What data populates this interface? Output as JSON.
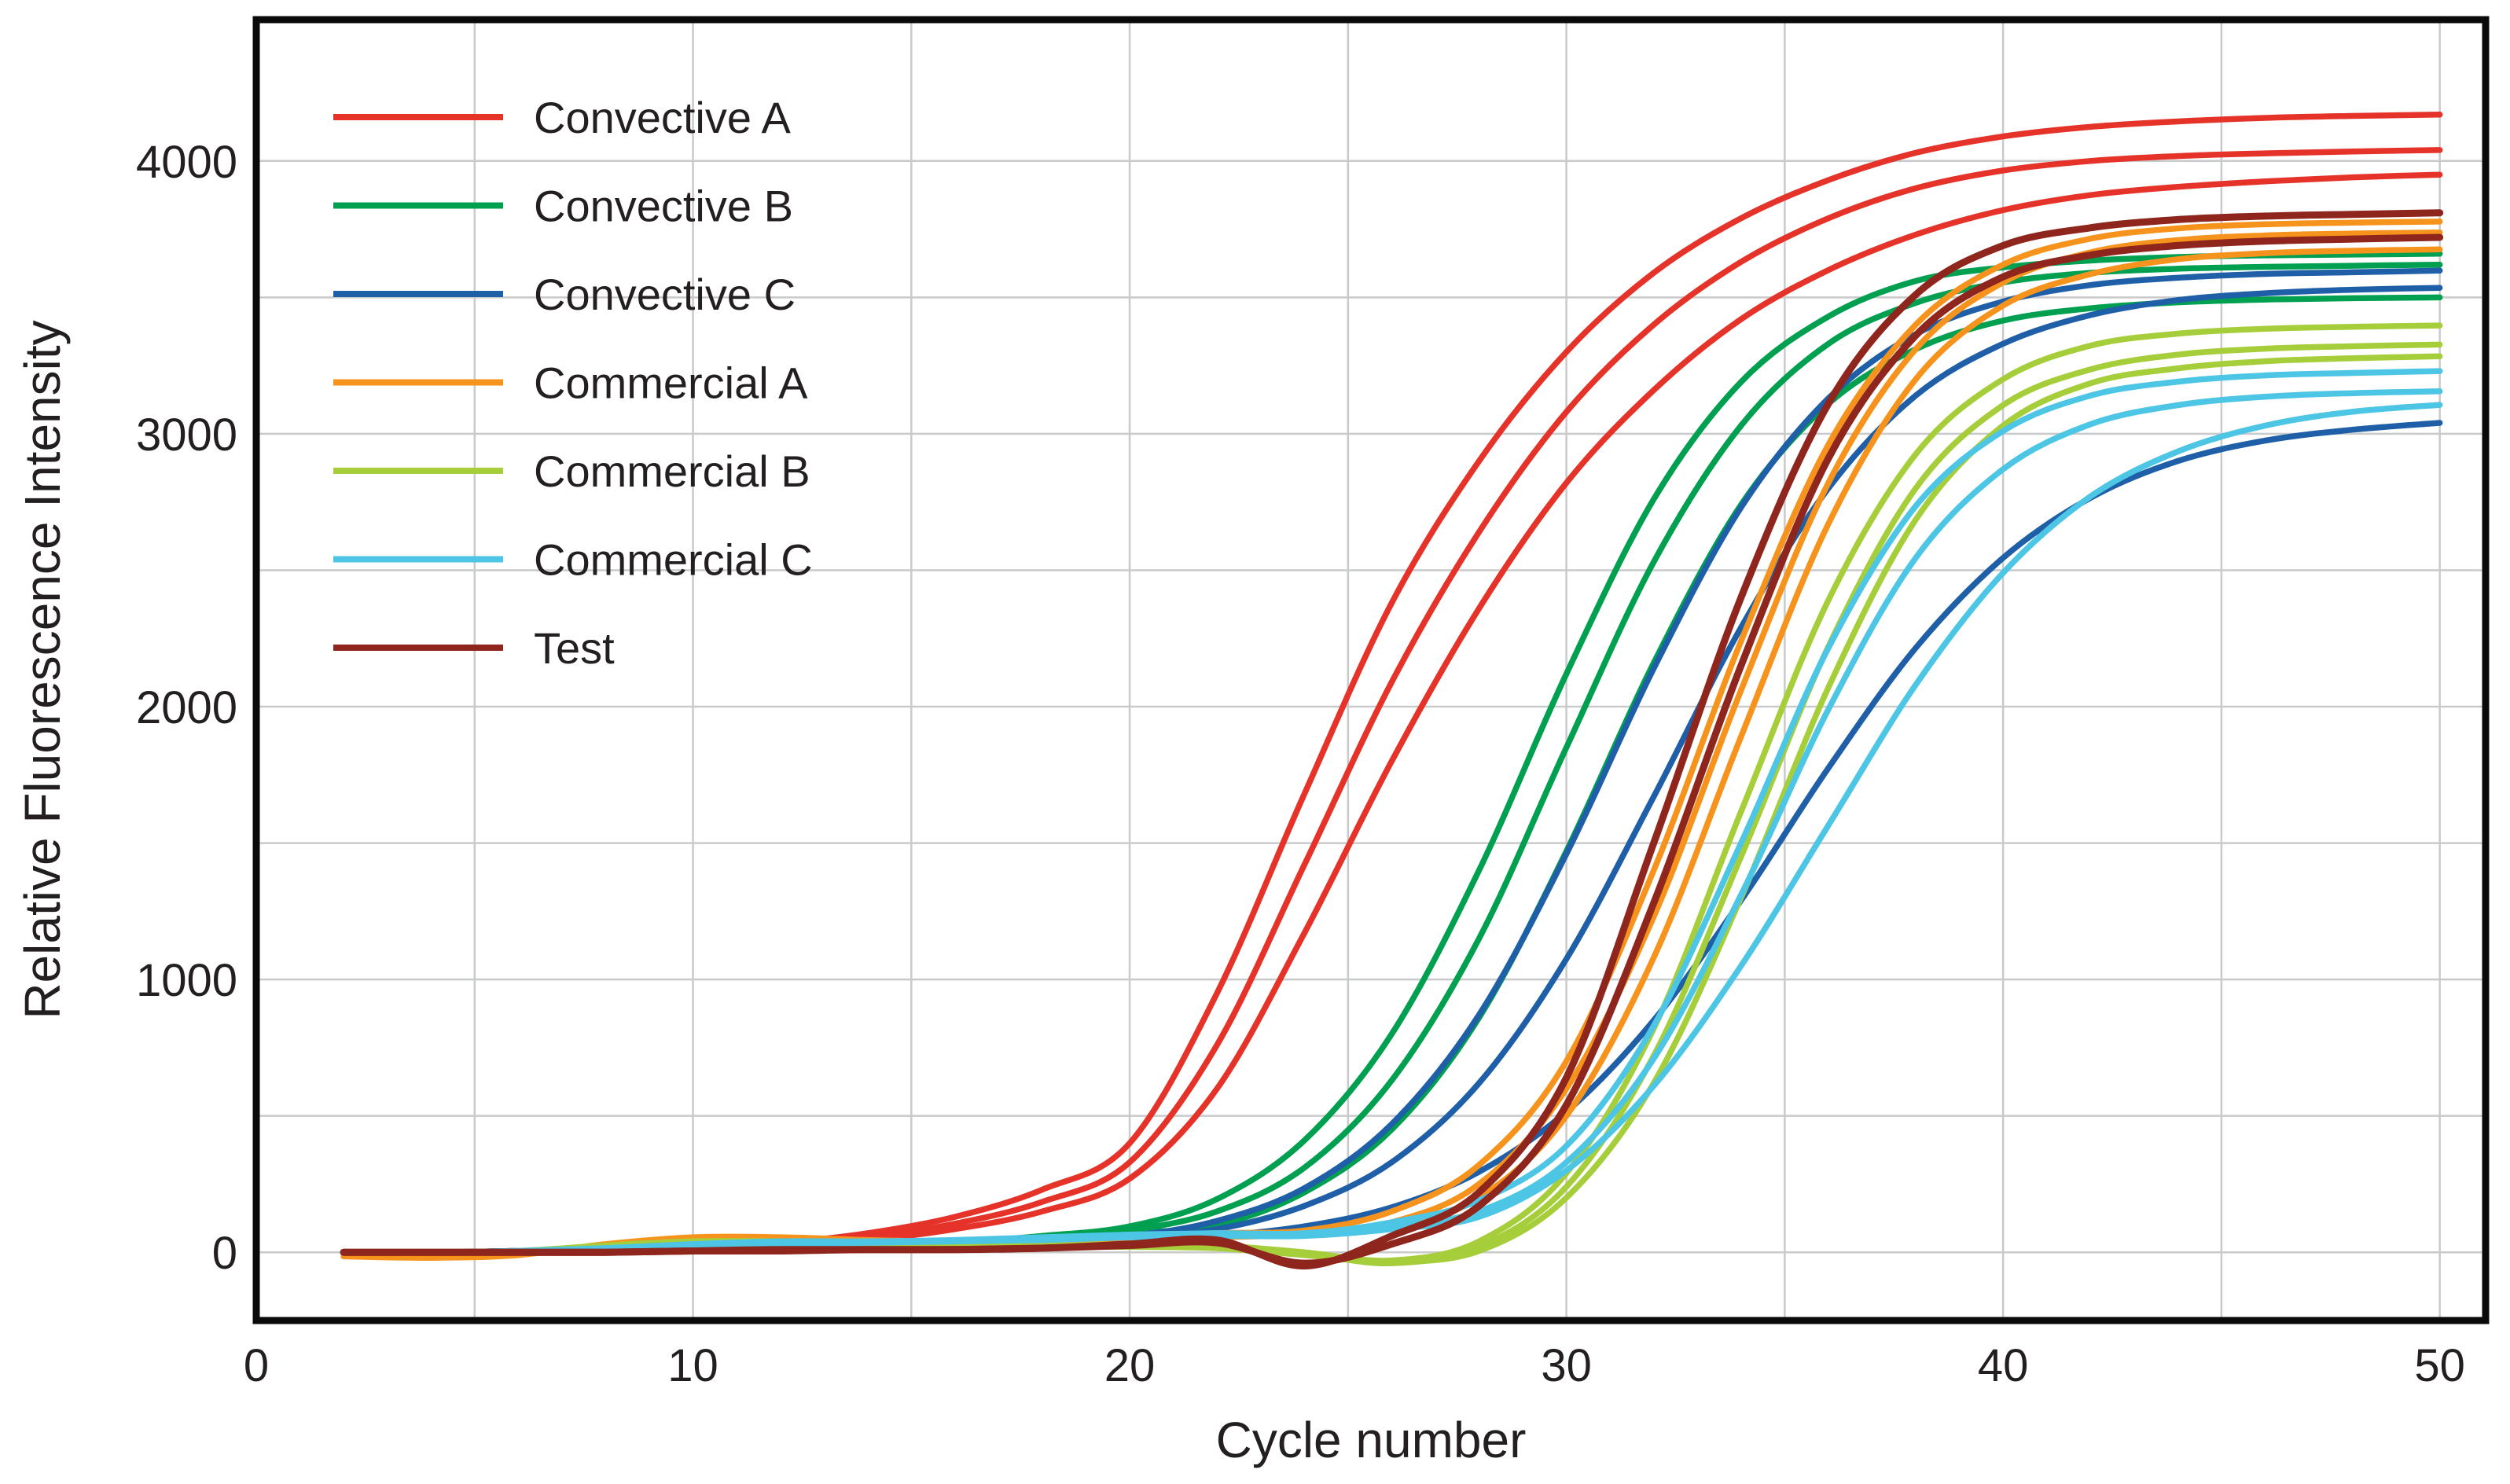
{
  "chart_data": {
    "type": "line",
    "title": "",
    "xlabel": "Cycle number",
    "ylabel": "Relative Fluorescence Intensity",
    "xlim": [
      0,
      51.05
    ],
    "ylim": [
      -250,
      4518
    ],
    "xticks": [
      0,
      10,
      20,
      30,
      40,
      50
    ],
    "yticks": [
      0,
      1000,
      2000,
      3000,
      4000
    ],
    "grid": {
      "on": true,
      "x_step": 5,
      "x_max": 50,
      "y_step": 500,
      "y_max": 4000
    },
    "legend_position": "inside-top-left",
    "x_values": [
      2,
      4,
      6,
      8,
      10,
      12,
      14,
      16,
      18,
      20,
      22,
      24,
      26,
      28,
      30,
      32,
      34,
      36,
      38,
      40,
      42,
      44,
      46,
      48,
      50
    ],
    "series": [
      {
        "name": "Convective A",
        "color": "#e5332a",
        "line_width": 7.5,
        "replicates": [
          [
            0,
            0,
            5,
            10,
            20,
            35,
            70,
            130,
            230,
            400,
            950,
            1680,
            2380,
            2900,
            3300,
            3590,
            3790,
            3930,
            4030,
            4090,
            4125,
            4145,
            4158,
            4165,
            4170
          ],
          [
            0,
            0,
            5,
            10,
            15,
            30,
            55,
            105,
            185,
            330,
            760,
            1420,
            2090,
            2640,
            3080,
            3400,
            3630,
            3790,
            3900,
            3965,
            4000,
            4018,
            4028,
            4035,
            4040
          ],
          [
            0,
            0,
            0,
            5,
            15,
            25,
            45,
            85,
            150,
            270,
            600,
            1170,
            1800,
            2360,
            2820,
            3160,
            3420,
            3600,
            3730,
            3820,
            3875,
            3905,
            3925,
            3940,
            3950
          ]
        ]
      },
      {
        "name": "Convective B",
        "color": "#00a050",
        "line_width": 7.5,
        "replicates": [
          [
            0,
            0,
            5,
            15,
            40,
            35,
            30,
            35,
            60,
            95,
            195,
            410,
            800,
            1400,
            2120,
            2760,
            3190,
            3430,
            3560,
            3610,
            3635,
            3648,
            3654,
            3657,
            3660
          ],
          [
            0,
            0,
            5,
            10,
            35,
            30,
            30,
            30,
            50,
            80,
            150,
            310,
            630,
            1150,
            1850,
            2530,
            3030,
            3330,
            3480,
            3555,
            3590,
            3605,
            3612,
            3616,
            3620
          ],
          [
            0,
            0,
            0,
            10,
            30,
            25,
            25,
            30,
            45,
            70,
            100,
            220,
            450,
            860,
            1470,
            2160,
            2740,
            3110,
            3310,
            3415,
            3460,
            3482,
            3492,
            3497,
            3500
          ]
        ]
      },
      {
        "name": "Convective C",
        "color": "#1e5fa8",
        "line_width": 7.5,
        "replicates": [
          [
            0,
            0,
            5,
            10,
            30,
            30,
            25,
            30,
            40,
            60,
            115,
            235,
            470,
            870,
            1460,
            2140,
            2730,
            3130,
            3365,
            3485,
            3545,
            3572,
            3586,
            3592,
            3598
          ],
          [
            0,
            0,
            0,
            10,
            25,
            25,
            25,
            25,
            35,
            55,
            85,
            170,
            330,
            620,
            1075,
            1670,
            2290,
            2800,
            3140,
            3330,
            3435,
            3490,
            3515,
            3528,
            3535
          ],
          [
            0,
            0,
            0,
            5,
            20,
            20,
            20,
            25,
            30,
            45,
            60,
            95,
            165,
            295,
            515,
            850,
            1290,
            1775,
            2215,
            2545,
            2765,
            2900,
            2975,
            3015,
            3040
          ]
        ]
      },
      {
        "name": "Commercial A",
        "color": "#f6931d",
        "line_width": 7.5,
        "replicates": [
          [
            -15,
            -20,
            -10,
            30,
            55,
            55,
            45,
            40,
            45,
            55,
            70,
            80,
            150,
            320,
            700,
            1400,
            2240,
            2960,
            3400,
            3620,
            3715,
            3753,
            3768,
            3774,
            3778
          ],
          [
            0,
            -10,
            -5,
            25,
            45,
            50,
            40,
            35,
            40,
            50,
            60,
            70,
            110,
            250,
            600,
            1230,
            2060,
            2820,
            3310,
            3555,
            3665,
            3710,
            3727,
            3734,
            3738
          ],
          [
            0,
            0,
            0,
            20,
            40,
            45,
            35,
            30,
            35,
            45,
            55,
            65,
            90,
            200,
            500,
            1080,
            1890,
            2670,
            3200,
            3470,
            3585,
            3640,
            3662,
            3671,
            3676
          ]
        ]
      },
      {
        "name": "Commercial B",
        "color": "#a6ce3a",
        "line_width": 7.5,
        "replicates": [
          [
            0,
            0,
            5,
            25,
            40,
            40,
            30,
            25,
            25,
            30,
            25,
            0,
            -30,
            40,
            290,
            820,
            1615,
            2390,
            2925,
            3200,
            3323,
            3367,
            3385,
            3392,
            3397
          ],
          [
            0,
            0,
            5,
            20,
            35,
            35,
            30,
            20,
            20,
            25,
            20,
            -5,
            -40,
            20,
            240,
            720,
            1450,
            2220,
            2800,
            3105,
            3236,
            3290,
            3312,
            3321,
            3327
          ],
          [
            0,
            0,
            0,
            15,
            30,
            30,
            25,
            20,
            20,
            20,
            15,
            -10,
            -35,
            5,
            200,
            620,
            1300,
            2070,
            2685,
            3030,
            3185,
            3240,
            3266,
            3277,
            3284
          ]
        ]
      },
      {
        "name": "Commercial C",
        "color": "#4dc5e4",
        "line_width": 7.5,
        "replicates": [
          [
            0,
            0,
            5,
            15,
            30,
            40,
            40,
            45,
            55,
            65,
            70,
            70,
            110,
            190,
            390,
            830,
            1500,
            2215,
            2735,
            3010,
            3140,
            3191,
            3214,
            3223,
            3230
          ],
          [
            0,
            0,
            5,
            15,
            25,
            35,
            40,
            40,
            50,
            60,
            65,
            65,
            95,
            150,
            330,
            710,
            1310,
            1990,
            2545,
            2870,
            3035,
            3105,
            3136,
            3149,
            3156
          ],
          [
            0,
            0,
            0,
            10,
            25,
            30,
            35,
            40,
            45,
            55,
            60,
            60,
            85,
            130,
            300,
            610,
            1050,
            1565,
            2080,
            2490,
            2770,
            2935,
            3030,
            3081,
            3106
          ]
        ]
      },
      {
        "name": "Test",
        "color": "#8f261d",
        "line_width": 9,
        "replicates": [
          [
            0,
            0,
            0,
            0,
            5,
            10,
            10,
            10,
            15,
            30,
            45,
            -50,
            60,
            220,
            640,
            1500,
            2400,
            3110,
            3510,
            3690,
            3755,
            3785,
            3798,
            3804,
            3810
          ],
          [
            0,
            0,
            0,
            0,
            5,
            5,
            10,
            10,
            15,
            25,
            35,
            -40,
            30,
            170,
            540,
            1280,
            2150,
            2910,
            3360,
            3575,
            3655,
            3690,
            3706,
            3714,
            3720
          ]
        ]
      }
    ]
  },
  "colors": {
    "background": "#ffffff",
    "grid": "#c9cacb",
    "axis_border": "#0a0a0a",
    "text": "#231f20"
  }
}
